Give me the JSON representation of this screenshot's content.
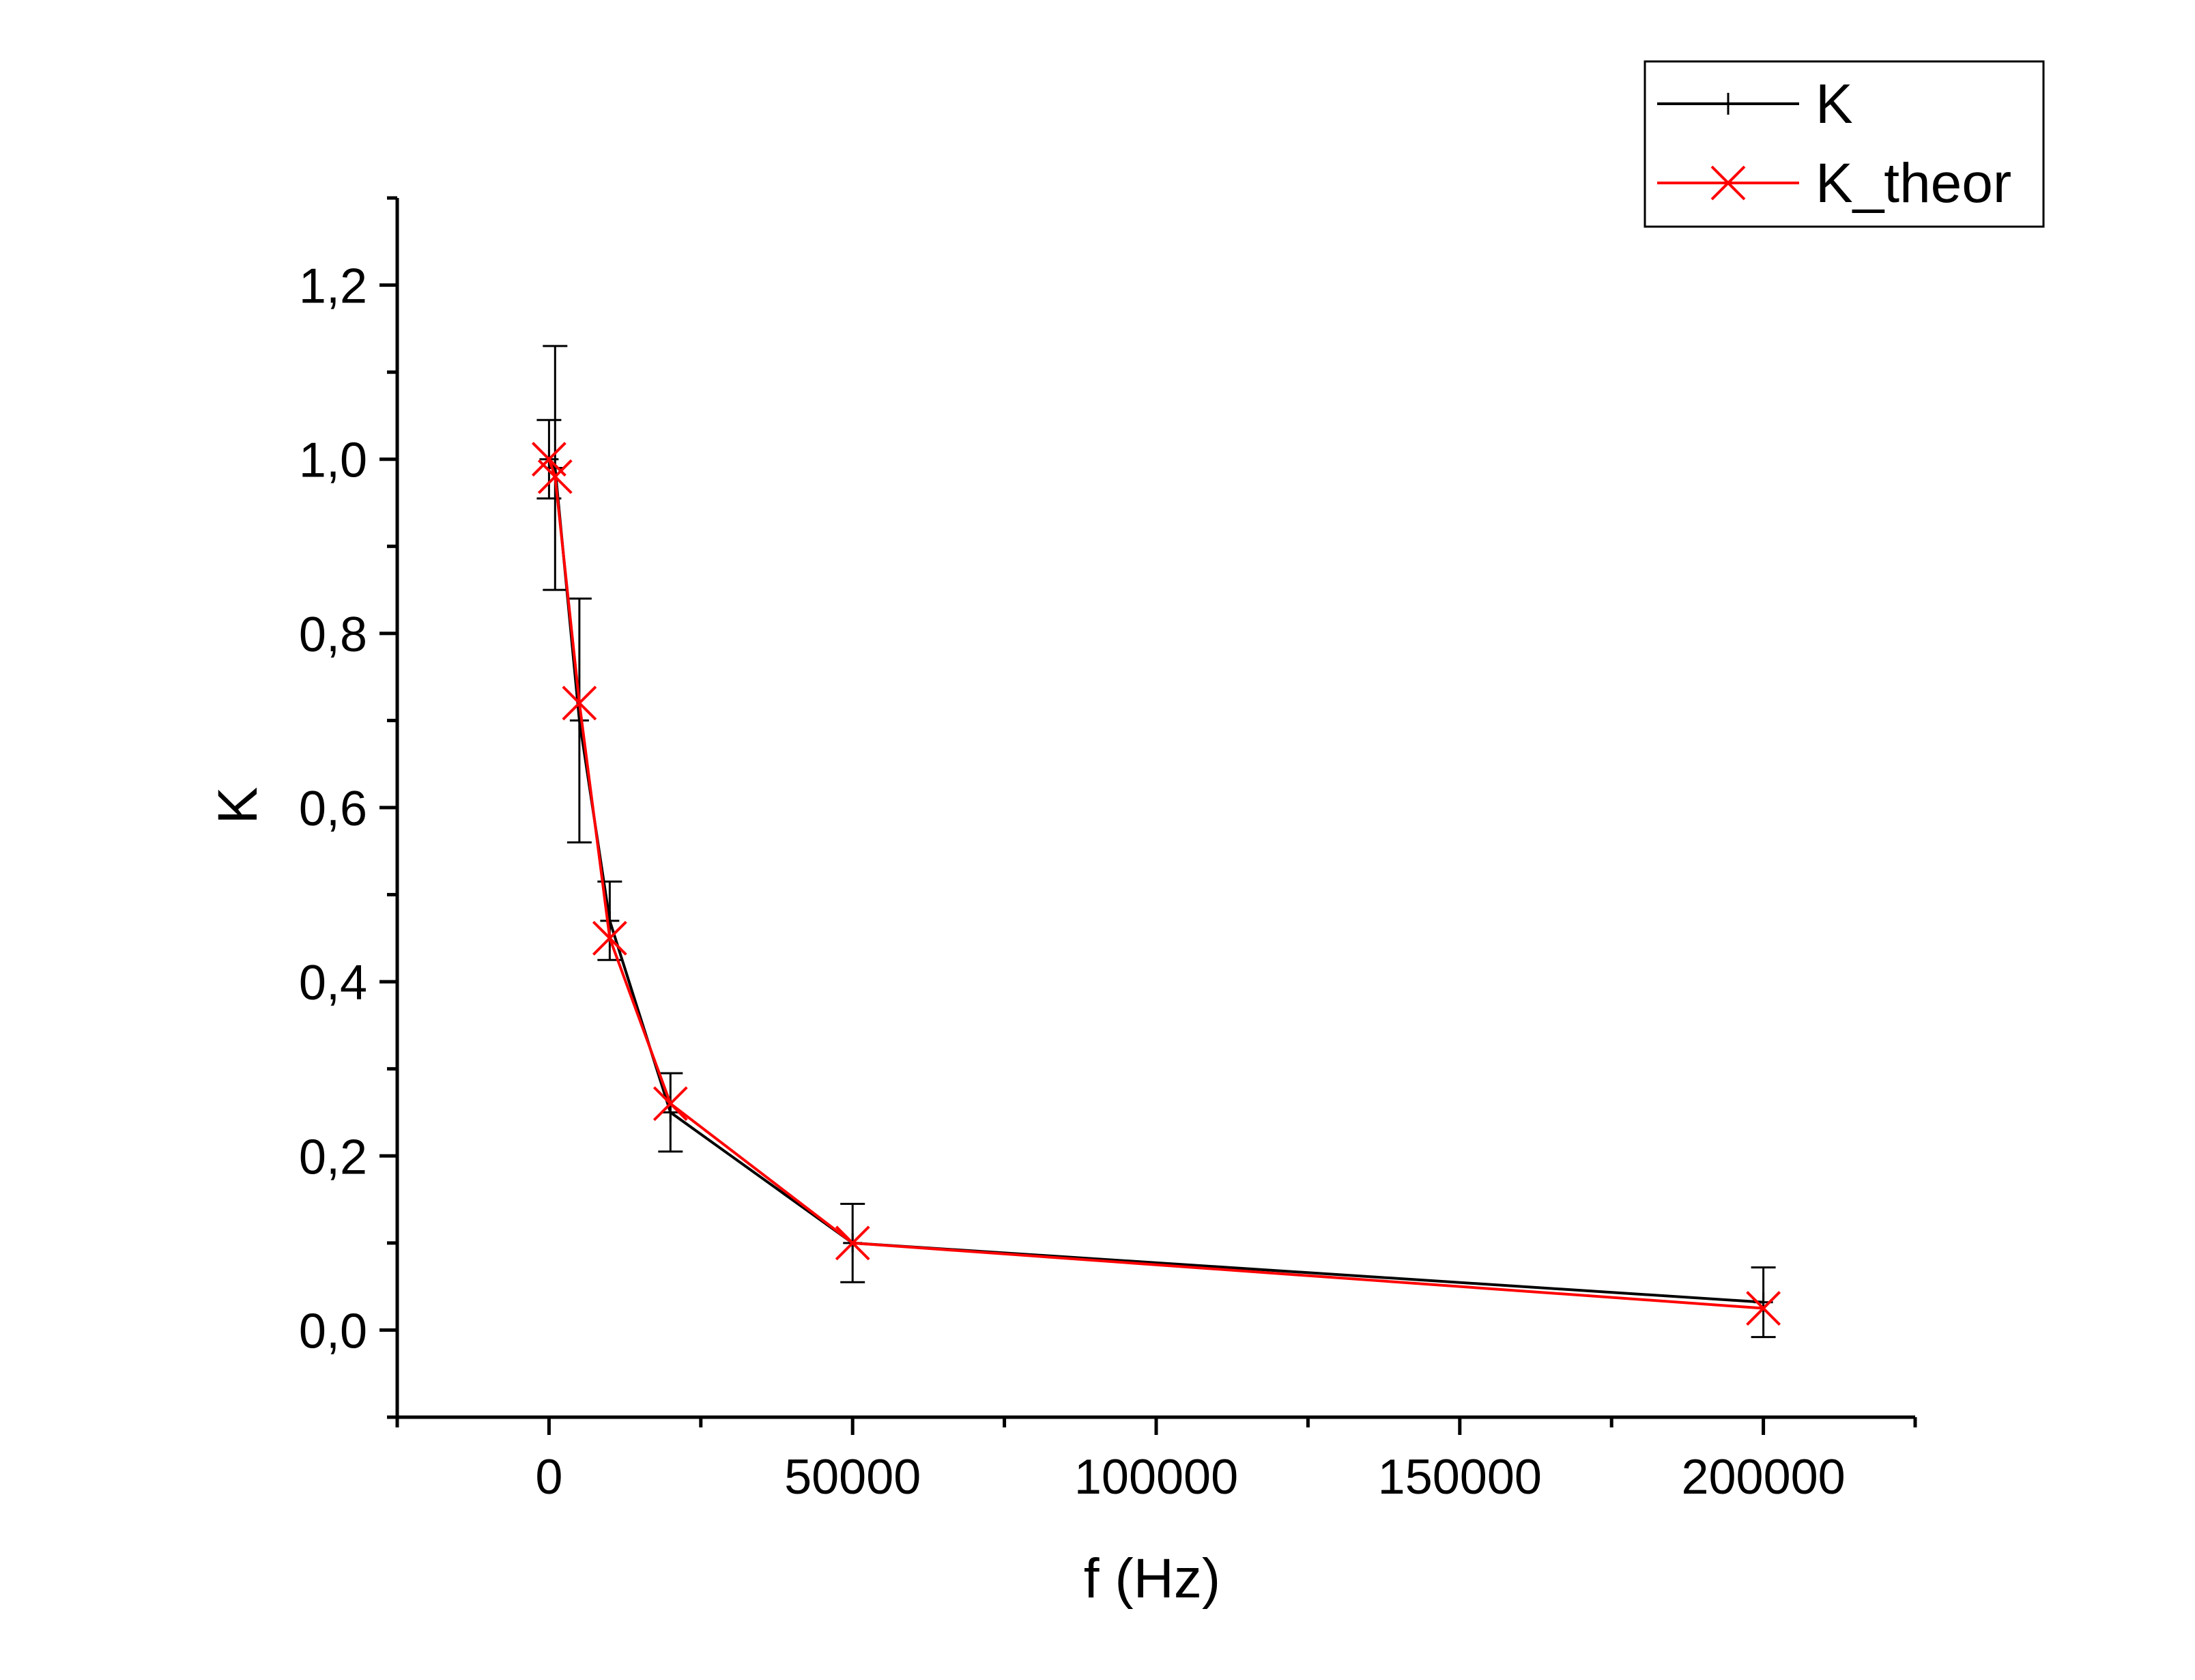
{
  "chart_data": {
    "type": "line",
    "title": "",
    "xlabel": "f (Hz)",
    "ylabel": "K",
    "xlim": [
      -25000,
      225000
    ],
    "ylim": [
      -0.1,
      1.3
    ],
    "x_ticks": [
      0,
      50000,
      100000,
      150000,
      200000
    ],
    "x_tick_labels": [
      "0",
      "50000",
      "100000",
      "150000",
      "200000"
    ],
    "y_ticks": [
      0.0,
      0.2,
      0.4,
      0.6,
      0.8,
      1.0,
      1.2
    ],
    "y_tick_labels": [
      "0,0",
      "0,2",
      "0,4",
      "0,6",
      "0,8",
      "1,0",
      "1,2"
    ],
    "grid": false,
    "legend_position": "top-right",
    "series": [
      {
        "name": "K",
        "color": "#000000",
        "marker": "plus",
        "x": [
          0,
          1000,
          5000,
          10000,
          20000,
          50000,
          200000
        ],
        "y": [
          1.0,
          0.99,
          0.7,
          0.47,
          0.25,
          0.1,
          0.032
        ],
        "yerr": [
          0.045,
          0.14,
          0.14,
          0.045,
          0.045,
          0.045,
          0.04
        ]
      },
      {
        "name": "K_theor",
        "color": "#ff0000",
        "marker": "x",
        "x": [
          0,
          1000,
          5000,
          10000,
          20000,
          50000,
          200000
        ],
        "y": [
          1.0,
          0.98,
          0.72,
          0.45,
          0.26,
          0.1,
          0.025
        ]
      }
    ]
  }
}
